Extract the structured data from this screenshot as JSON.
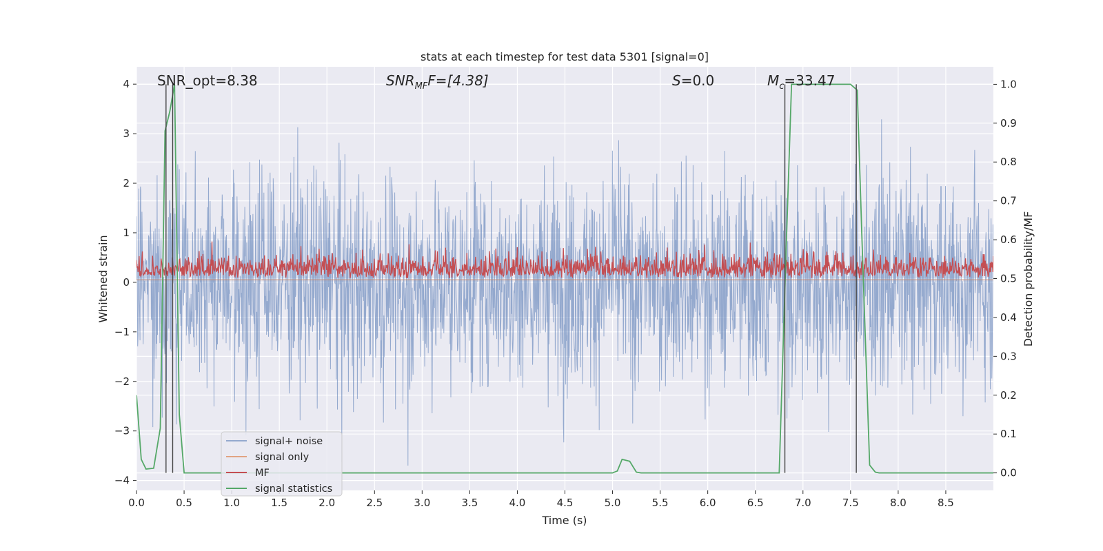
{
  "chart_data": {
    "type": "line",
    "title": "stats at each timestep for test data 5301 [signal=0]",
    "xlabel": "Time (s)",
    "ylabel": "Whitened strain",
    "ylabel_right": "Detection probability/MF",
    "xlim": [
      0.0,
      9.0
    ],
    "ylim": [
      -4.2,
      4.35
    ],
    "ylim_right": [
      -0.045,
      1.045
    ],
    "xticks": [
      0.0,
      0.5,
      1.0,
      1.5,
      2.0,
      2.5,
      3.0,
      3.5,
      4.0,
      4.5,
      5.0,
      5.5,
      6.0,
      6.5,
      7.0,
      7.5,
      8.0,
      8.5
    ],
    "xtick_labels": [
      "0.0",
      "0.5",
      "1.0",
      "1.5",
      "2.0",
      "2.5",
      "3.0",
      "3.5",
      "4.0",
      "4.5",
      "5.0",
      "5.5",
      "6.0",
      "6.5",
      "7.0",
      "7.5",
      "8.0",
      "8.5"
    ],
    "yticks": [
      -4,
      -3,
      -2,
      -1,
      0,
      1,
      2,
      3,
      4
    ],
    "ytick_labels": [
      "−4",
      "−3",
      "−2",
      "−1",
      "0",
      "1",
      "2",
      "3",
      "4"
    ],
    "yticks_right": [
      0.0,
      0.1,
      0.2,
      0.3,
      0.4,
      0.5,
      0.6,
      0.7,
      0.8,
      0.9,
      1.0
    ],
    "ytick_right_labels": [
      "0.0",
      "0.1",
      "0.2",
      "0.3",
      "0.4",
      "0.5",
      "0.6",
      "0.7",
      "0.8",
      "0.9",
      "1.0"
    ],
    "grid": true,
    "legend_placement": "lower-left",
    "annotations": {
      "snr_opt": "SNR_opt=8.38",
      "snr_mf_main": "SNR",
      "snr_mf_sub": "MF",
      "snr_mf_rest": "F=[4.38]",
      "s_main": "S",
      "s_rest": "=0.0",
      "mc_main": "M",
      "mc_sub": "c",
      "mc_rest": "=33.47"
    },
    "series": [
      {
        "name": "signal+ noise",
        "color": "#4c72b0",
        "description": "whitened strain noise, envelope roughly ±2.5, peaks to about ±3.7",
        "envelope": [
          -2.5,
          2.5
        ]
      },
      {
        "name": "signal only",
        "color": "#dd8452",
        "x": [
          0.0,
          9.0
        ],
        "y": [
          0.05,
          0.05
        ]
      },
      {
        "name": "MF",
        "color": "#c44e52",
        "axis": "right",
        "description": "matched filter output, fluctuates between about 0.5 and 0.59 (right axis)",
        "band": [
          0.5,
          0.59
        ]
      },
      {
        "name": "signal statistics",
        "color": "#55a868",
        "axis": "right",
        "x": [
          0.0,
          0.05,
          0.1,
          0.18,
          0.25,
          0.3,
          0.35,
          0.4,
          0.45,
          0.5,
          0.6,
          1.0,
          2.0,
          3.0,
          4.0,
          5.0,
          5.05,
          5.1,
          5.18,
          5.25,
          5.3,
          5.5,
          6.0,
          6.5,
          6.75,
          6.82,
          6.88,
          7.0,
          7.2,
          7.5,
          7.57,
          7.62,
          7.7,
          7.76,
          7.8,
          8.0,
          8.5,
          9.0
        ],
        "y": [
          0.2,
          0.035,
          0.01,
          0.012,
          0.115,
          0.88,
          0.93,
          1.0,
          0.15,
          0.0,
          0.0,
          0.0,
          0.0,
          0.0,
          0.0,
          0.0,
          0.005,
          0.035,
          0.03,
          0.002,
          0.0,
          0.0,
          0.0,
          0.0,
          0.0,
          0.55,
          1.0,
          1.0,
          1.0,
          1.0,
          0.985,
          0.6,
          0.02,
          0.002,
          0.0,
          0.0,
          0.0,
          0.0
        ]
      }
    ],
    "vertical_lines": [
      {
        "color": "#444444",
        "x": [
          0.31,
          0.38,
          6.81,
          7.56
        ]
      }
    ]
  }
}
